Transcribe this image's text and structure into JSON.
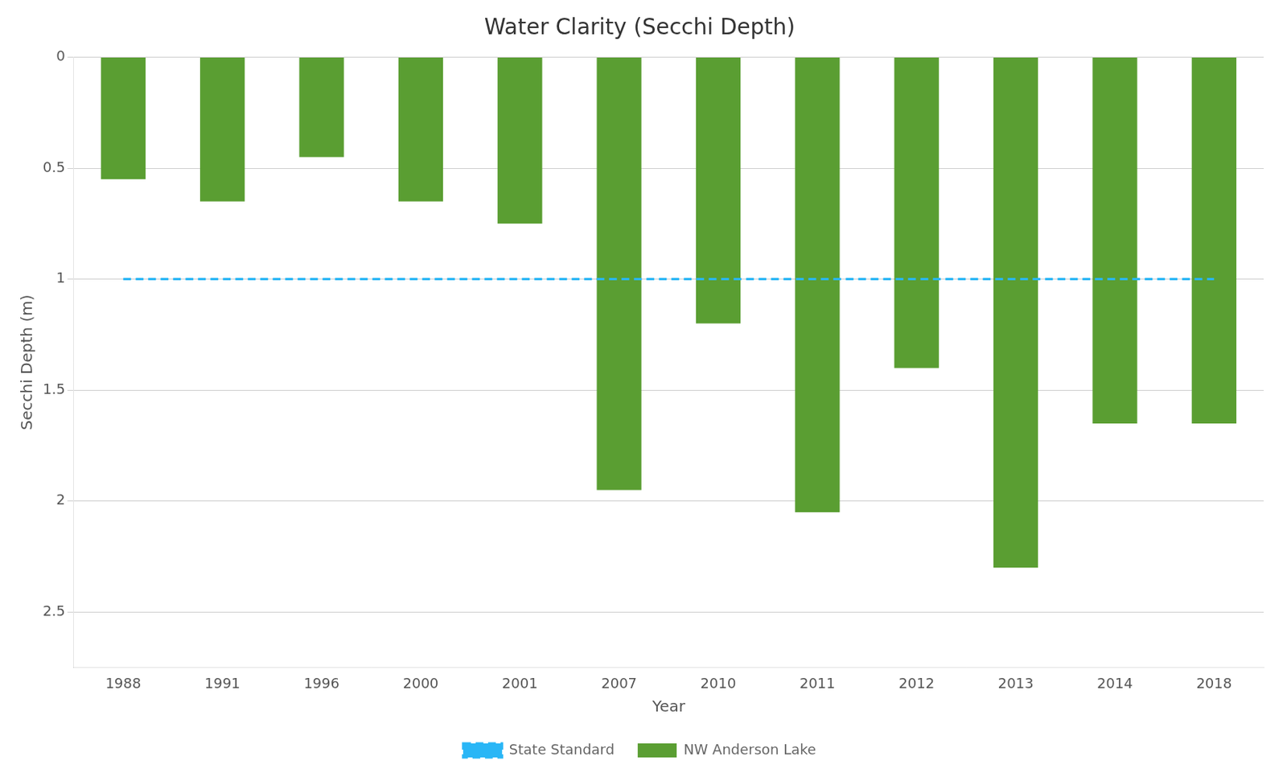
{
  "chart_data": {
    "type": "bar",
    "title": "Water Clarity (Secchi Depth)",
    "x_label": "Year",
    "y_label": "Secchi Depth (m)",
    "categories": [
      "1988",
      "1991",
      "1996",
      "2000",
      "2001",
      "2007",
      "2010",
      "2011",
      "2012",
      "2013",
      "2014",
      "2018"
    ],
    "series": [
      {
        "name": "NW Anderson Lake",
        "type": "bar",
        "color": "#5a9e32",
        "values": [
          0.55,
          0.65,
          0.45,
          0.65,
          0.75,
          1.95,
          1.2,
          2.05,
          1.4,
          2.3,
          1.65,
          1.65
        ]
      },
      {
        "name": "State Standard",
        "type": "line",
        "color": "#29b6f6",
        "line_style": "dashed",
        "values": [
          1.0,
          1.0,
          1.0,
          1.0,
          1.0,
          1.0,
          1.0,
          1.0,
          1.0,
          1.0,
          1.0,
          1.0
        ]
      }
    ],
    "ylim": [
      2.75,
      0
    ],
    "yticks": [
      0,
      0.5,
      1,
      1.5,
      2,
      2.5
    ],
    "grid": true,
    "legend": "bottom"
  }
}
